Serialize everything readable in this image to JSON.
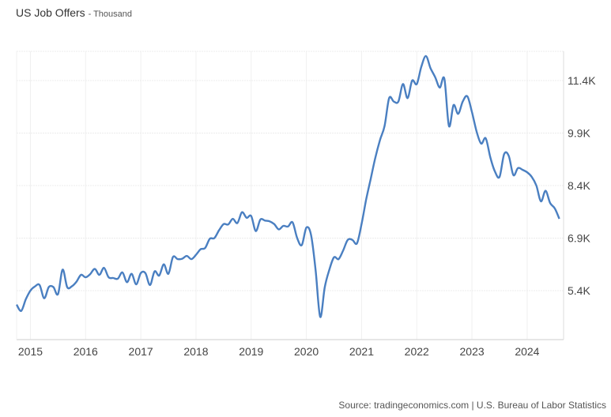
{
  "chart_data": {
    "type": "line",
    "title": "US Job Offers",
    "subtitle": "- Thousand",
    "source": "Source: tradingeconomics.com | U.S. Bureau of Labor Statistics",
    "xlabel": "",
    "ylabel": "",
    "x_ticks": [
      "2015",
      "2016",
      "2017",
      "2018",
      "2019",
      "2020",
      "2021",
      "2022",
      "2023",
      "2024"
    ],
    "y_ticks": [
      {
        "value": 5400,
        "label": "5.4K"
      },
      {
        "value": 6900,
        "label": "6.9K"
      },
      {
        "value": 8400,
        "label": "8.4K"
      },
      {
        "value": 9900,
        "label": "9.9K"
      },
      {
        "value": 11400,
        "label": "11.4K"
      }
    ],
    "xlim": [
      2014.75,
      2024.66
    ],
    "ylim": [
      4000,
      12235
    ],
    "grid": true,
    "line_color": "#4a7fc1",
    "series": [
      {
        "name": "US Job Offers",
        "start": "2014-10",
        "frequency": "monthly",
        "values": [
          5000,
          4820,
          5150,
          5400,
          5520,
          5560,
          5180,
          5500,
          5500,
          5300,
          6000,
          5500,
          5520,
          5650,
          5850,
          5780,
          5870,
          6020,
          5850,
          6050,
          5780,
          5760,
          5740,
          5920,
          5640,
          5880,
          5580,
          5900,
          5900,
          5560,
          5950,
          5830,
          6150,
          5880,
          6360,
          6300,
          6310,
          6390,
          6300,
          6420,
          6580,
          6620,
          6880,
          6900,
          7120,
          7300,
          7290,
          7450,
          7330,
          7640,
          7480,
          7530,
          7100,
          7430,
          7400,
          7380,
          7300,
          7150,
          7250,
          7230,
          7350,
          6900,
          6700,
          7200,
          7000,
          6000,
          4650,
          5500,
          6000,
          6350,
          6300,
          6550,
          6850,
          6850,
          6750,
          7300,
          8000,
          8600,
          9200,
          9700,
          10100,
          10900,
          10800,
          10800,
          11300,
          10900,
          11400,
          11300,
          11800,
          12100,
          11750,
          11500,
          11200,
          11450,
          10100,
          10700,
          10450,
          10800,
          10950,
          10500,
          9950,
          9600,
          9750,
          9200,
          8800,
          8650,
          9300,
          9250,
          8700,
          8900,
          8850,
          8780,
          8650,
          8400,
          7950,
          8250,
          7900,
          7750,
          7450
        ]
      }
    ]
  }
}
